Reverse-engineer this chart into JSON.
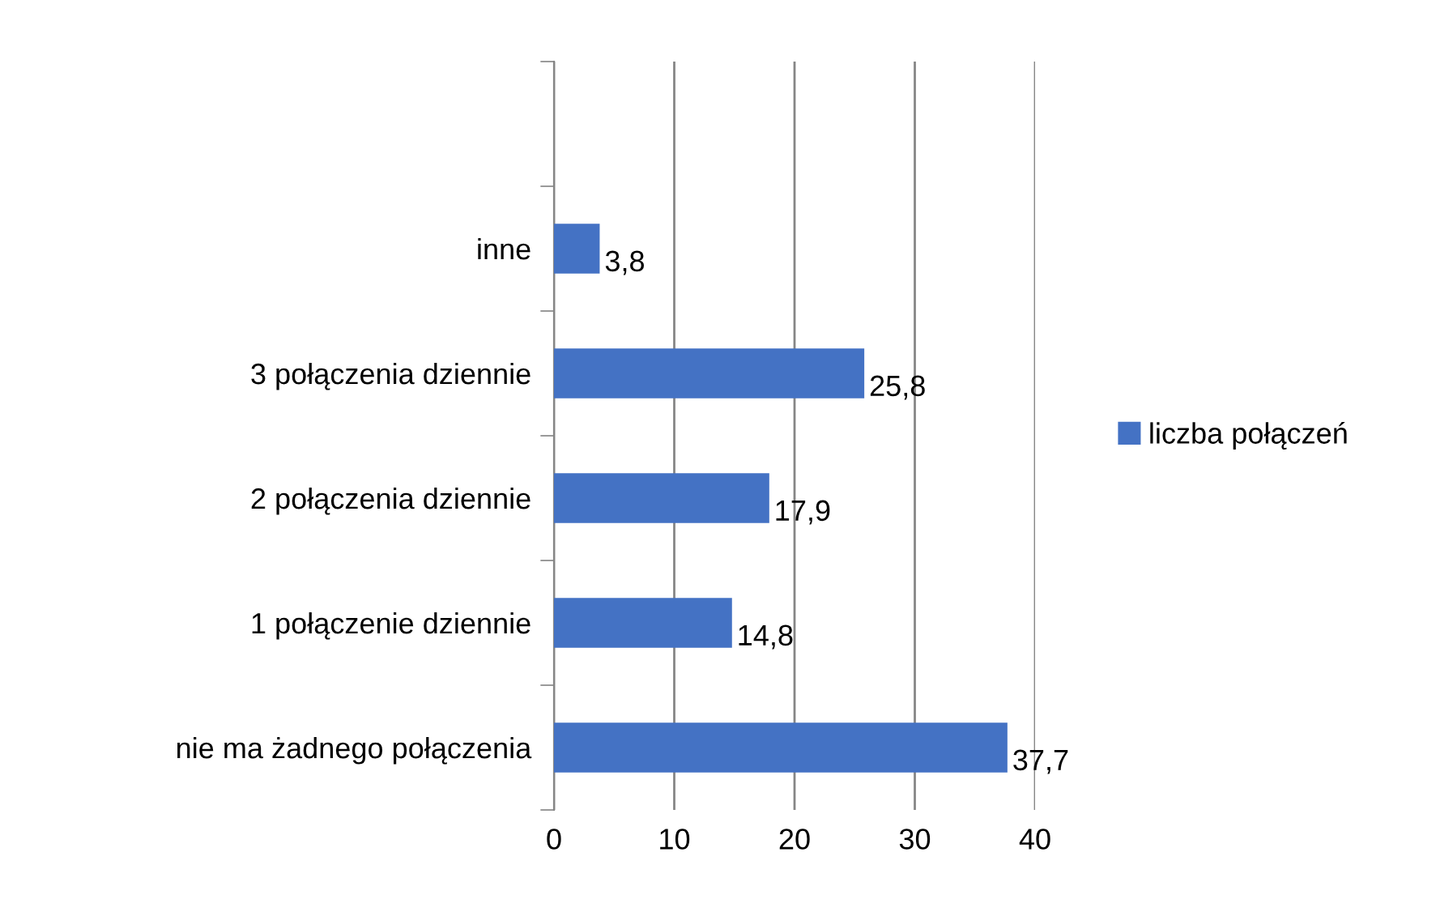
{
  "chart_data": {
    "type": "bar",
    "orientation": "horizontal",
    "categories": [
      null,
      "inne",
      "3 połączenia dziennie",
      "2 połączenia dziennie",
      "1 połączenie dziennie",
      "nie ma żadnego połączenia"
    ],
    "series": [
      {
        "name": "liczba połączeń",
        "color": "#4472c4",
        "values": [
          null,
          3.8,
          25.8,
          17.9,
          14.8,
          37.7
        ],
        "value_labels": [
          null,
          "3,8",
          "25,8",
          "17,9",
          "14,8",
          "37,7"
        ]
      }
    ],
    "xlim": [
      0,
      40
    ],
    "xticks": [
      0,
      10,
      20,
      30,
      40
    ],
    "grid": "x",
    "legend": "right"
  }
}
